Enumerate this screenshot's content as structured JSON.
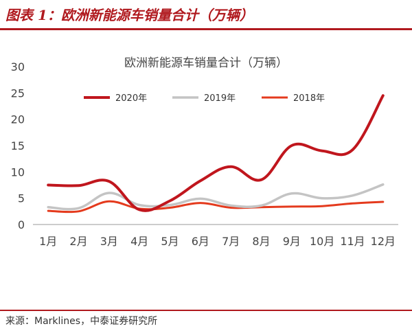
{
  "header": {
    "figure_title": "图表 1：欧洲新能源车销量合计（万辆）"
  },
  "footer": {
    "source": "来源：Marklines，中泰证券研究所"
  },
  "chart_data": {
    "type": "line",
    "title": "欧洲新能源车销量合计（万辆）",
    "categories": [
      "1月",
      "2月",
      "3月",
      "4月",
      "5月",
      "6月",
      "7月",
      "8月",
      "9月",
      "10月",
      "11月",
      "12月"
    ],
    "y_ticks": [
      0,
      5,
      10,
      15,
      20,
      25,
      30
    ],
    "ylim": [
      0,
      30
    ],
    "legend_position": "top",
    "series": [
      {
        "name": "2020年",
        "color": "#c0161d",
        "width": 4,
        "values": [
          7.5,
          7.4,
          8.2,
          2.8,
          4.5,
          8.3,
          11.0,
          8.5,
          15.0,
          14.0,
          14.2,
          24.5
        ]
      },
      {
        "name": "2019年",
        "color": "#c4c4c4",
        "width": 3.5,
        "values": [
          3.3,
          3.1,
          6.0,
          3.7,
          3.7,
          4.9,
          3.6,
          3.6,
          5.9,
          5.0,
          5.5,
          7.6
        ]
      },
      {
        "name": "2018年",
        "color": "#e43a1d",
        "width": 3,
        "values": [
          2.6,
          2.5,
          4.4,
          3.0,
          3.2,
          4.1,
          3.2,
          3.3,
          3.4,
          3.5,
          4.0,
          4.3
        ]
      }
    ]
  }
}
